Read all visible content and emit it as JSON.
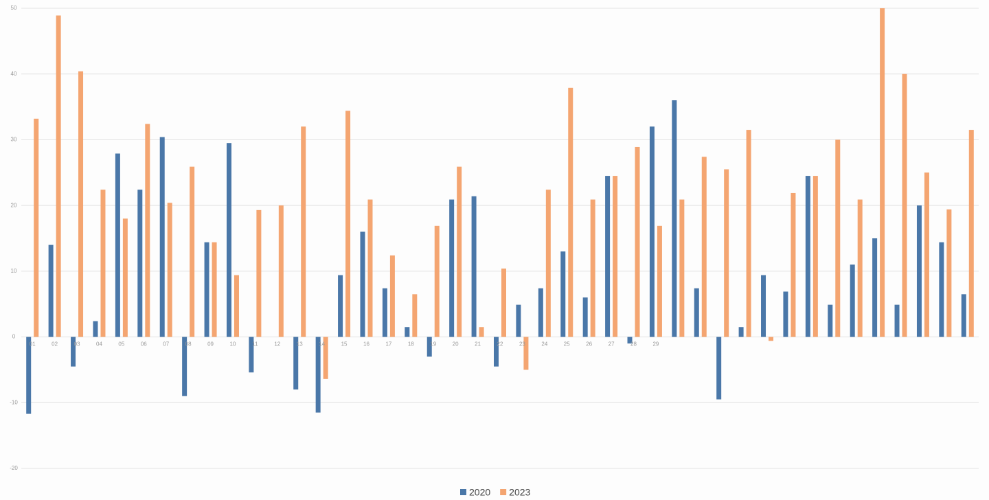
{
  "chart_data": {
    "type": "bar",
    "categories": [
      "01",
      "02",
      "03",
      "04",
      "05",
      "06",
      "07",
      "08",
      "09",
      "10",
      "11",
      "12",
      "13",
      "14",
      "15",
      "16",
      "17",
      "18",
      "19",
      "20",
      "21",
      "22",
      "23",
      "24",
      "25",
      "26",
      "27",
      "28",
      "29",
      null,
      null,
      null,
      null,
      null,
      null,
      null,
      null,
      null,
      null,
      null,
      null,
      null,
      null
    ],
    "series": [
      {
        "name": "2020",
        "color": "#4a77a8",
        "values": [
          -11.7,
          14,
          -4.5,
          2.4,
          27.9,
          22.4,
          30.4,
          -9,
          14.4,
          29.5,
          -5.4,
          0,
          -8,
          -11.5,
          9.4,
          16,
          7.4,
          1.5,
          -3,
          20.9,
          21.4,
          -4.5,
          4.9,
          7.4,
          13,
          6,
          24.5,
          -1,
          32,
          36,
          7.4,
          -9.5,
          1.5,
          9.4,
          6.9,
          24.5,
          4.9,
          11,
          15,
          4.9,
          20,
          14.4,
          6.5
        ]
      },
      {
        "name": "2023",
        "color": "#f4a571",
        "values": [
          33.2,
          48.9,
          40.4,
          22.4,
          18,
          32.4,
          20.4,
          25.9,
          14.4,
          9.4,
          19.3,
          20,
          32,
          -6.4,
          34.4,
          20.9,
          12.4,
          6.5,
          16.9,
          25.9,
          1.5,
          10.4,
          -5,
          22.4,
          37.9,
          20.9,
          24.5,
          28.9,
          16.9,
          20.9,
          27.4,
          25.5,
          31.5,
          -0.6,
          21.9,
          24.5,
          30,
          20.9,
          50,
          40,
          25,
          19.4,
          31.5
        ]
      }
    ],
    "ylim": [
      -20,
      50
    ],
    "yticks": [
      -20,
      -10,
      0,
      10,
      20,
      30,
      40,
      50
    ],
    "grid": true,
    "legend": "bottom"
  }
}
